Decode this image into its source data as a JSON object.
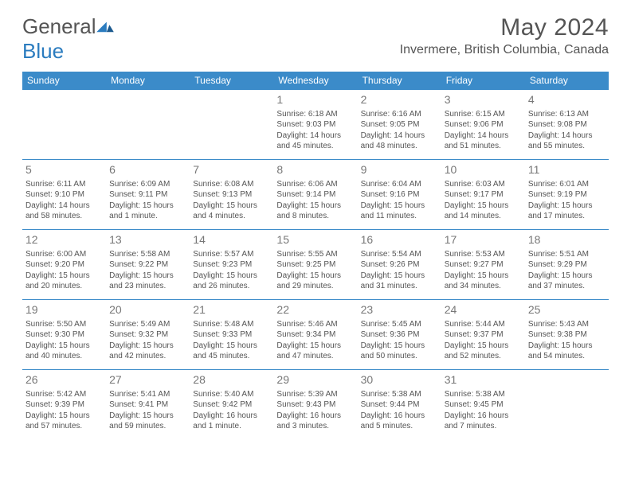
{
  "brand": {
    "part1": "General",
    "part2": "Blue"
  },
  "header": {
    "title": "May 2024",
    "location": "Invermere, British Columbia, Canada"
  },
  "colors": {
    "header_bg": "#3b8bc9",
    "header_text": "#ffffff",
    "border": "#3b8bc9",
    "text": "#555555",
    "brand_blue": "#2b7cbf"
  },
  "dayNames": [
    "Sunday",
    "Monday",
    "Tuesday",
    "Wednesday",
    "Thursday",
    "Friday",
    "Saturday"
  ],
  "weeks": [
    [
      null,
      null,
      null,
      {
        "n": "1",
        "sr": "Sunrise: 6:18 AM",
        "ss": "Sunset: 9:03 PM",
        "d1": "Daylight: 14 hours",
        "d2": "and 45 minutes."
      },
      {
        "n": "2",
        "sr": "Sunrise: 6:16 AM",
        "ss": "Sunset: 9:05 PM",
        "d1": "Daylight: 14 hours",
        "d2": "and 48 minutes."
      },
      {
        "n": "3",
        "sr": "Sunrise: 6:15 AM",
        "ss": "Sunset: 9:06 PM",
        "d1": "Daylight: 14 hours",
        "d2": "and 51 minutes."
      },
      {
        "n": "4",
        "sr": "Sunrise: 6:13 AM",
        "ss": "Sunset: 9:08 PM",
        "d1": "Daylight: 14 hours",
        "d2": "and 55 minutes."
      }
    ],
    [
      {
        "n": "5",
        "sr": "Sunrise: 6:11 AM",
        "ss": "Sunset: 9:10 PM",
        "d1": "Daylight: 14 hours",
        "d2": "and 58 minutes."
      },
      {
        "n": "6",
        "sr": "Sunrise: 6:09 AM",
        "ss": "Sunset: 9:11 PM",
        "d1": "Daylight: 15 hours",
        "d2": "and 1 minute."
      },
      {
        "n": "7",
        "sr": "Sunrise: 6:08 AM",
        "ss": "Sunset: 9:13 PM",
        "d1": "Daylight: 15 hours",
        "d2": "and 4 minutes."
      },
      {
        "n": "8",
        "sr": "Sunrise: 6:06 AM",
        "ss": "Sunset: 9:14 PM",
        "d1": "Daylight: 15 hours",
        "d2": "and 8 minutes."
      },
      {
        "n": "9",
        "sr": "Sunrise: 6:04 AM",
        "ss": "Sunset: 9:16 PM",
        "d1": "Daylight: 15 hours",
        "d2": "and 11 minutes."
      },
      {
        "n": "10",
        "sr": "Sunrise: 6:03 AM",
        "ss": "Sunset: 9:17 PM",
        "d1": "Daylight: 15 hours",
        "d2": "and 14 minutes."
      },
      {
        "n": "11",
        "sr": "Sunrise: 6:01 AM",
        "ss": "Sunset: 9:19 PM",
        "d1": "Daylight: 15 hours",
        "d2": "and 17 minutes."
      }
    ],
    [
      {
        "n": "12",
        "sr": "Sunrise: 6:00 AM",
        "ss": "Sunset: 9:20 PM",
        "d1": "Daylight: 15 hours",
        "d2": "and 20 minutes."
      },
      {
        "n": "13",
        "sr": "Sunrise: 5:58 AM",
        "ss": "Sunset: 9:22 PM",
        "d1": "Daylight: 15 hours",
        "d2": "and 23 minutes."
      },
      {
        "n": "14",
        "sr": "Sunrise: 5:57 AM",
        "ss": "Sunset: 9:23 PM",
        "d1": "Daylight: 15 hours",
        "d2": "and 26 minutes."
      },
      {
        "n": "15",
        "sr": "Sunrise: 5:55 AM",
        "ss": "Sunset: 9:25 PM",
        "d1": "Daylight: 15 hours",
        "d2": "and 29 minutes."
      },
      {
        "n": "16",
        "sr": "Sunrise: 5:54 AM",
        "ss": "Sunset: 9:26 PM",
        "d1": "Daylight: 15 hours",
        "d2": "and 31 minutes."
      },
      {
        "n": "17",
        "sr": "Sunrise: 5:53 AM",
        "ss": "Sunset: 9:27 PM",
        "d1": "Daylight: 15 hours",
        "d2": "and 34 minutes."
      },
      {
        "n": "18",
        "sr": "Sunrise: 5:51 AM",
        "ss": "Sunset: 9:29 PM",
        "d1": "Daylight: 15 hours",
        "d2": "and 37 minutes."
      }
    ],
    [
      {
        "n": "19",
        "sr": "Sunrise: 5:50 AM",
        "ss": "Sunset: 9:30 PM",
        "d1": "Daylight: 15 hours",
        "d2": "and 40 minutes."
      },
      {
        "n": "20",
        "sr": "Sunrise: 5:49 AM",
        "ss": "Sunset: 9:32 PM",
        "d1": "Daylight: 15 hours",
        "d2": "and 42 minutes."
      },
      {
        "n": "21",
        "sr": "Sunrise: 5:48 AM",
        "ss": "Sunset: 9:33 PM",
        "d1": "Daylight: 15 hours",
        "d2": "and 45 minutes."
      },
      {
        "n": "22",
        "sr": "Sunrise: 5:46 AM",
        "ss": "Sunset: 9:34 PM",
        "d1": "Daylight: 15 hours",
        "d2": "and 47 minutes."
      },
      {
        "n": "23",
        "sr": "Sunrise: 5:45 AM",
        "ss": "Sunset: 9:36 PM",
        "d1": "Daylight: 15 hours",
        "d2": "and 50 minutes."
      },
      {
        "n": "24",
        "sr": "Sunrise: 5:44 AM",
        "ss": "Sunset: 9:37 PM",
        "d1": "Daylight: 15 hours",
        "d2": "and 52 minutes."
      },
      {
        "n": "25",
        "sr": "Sunrise: 5:43 AM",
        "ss": "Sunset: 9:38 PM",
        "d1": "Daylight: 15 hours",
        "d2": "and 54 minutes."
      }
    ],
    [
      {
        "n": "26",
        "sr": "Sunrise: 5:42 AM",
        "ss": "Sunset: 9:39 PM",
        "d1": "Daylight: 15 hours",
        "d2": "and 57 minutes."
      },
      {
        "n": "27",
        "sr": "Sunrise: 5:41 AM",
        "ss": "Sunset: 9:41 PM",
        "d1": "Daylight: 15 hours",
        "d2": "and 59 minutes."
      },
      {
        "n": "28",
        "sr": "Sunrise: 5:40 AM",
        "ss": "Sunset: 9:42 PM",
        "d1": "Daylight: 16 hours",
        "d2": "and 1 minute."
      },
      {
        "n": "29",
        "sr": "Sunrise: 5:39 AM",
        "ss": "Sunset: 9:43 PM",
        "d1": "Daylight: 16 hours",
        "d2": "and 3 minutes."
      },
      {
        "n": "30",
        "sr": "Sunrise: 5:38 AM",
        "ss": "Sunset: 9:44 PM",
        "d1": "Daylight: 16 hours",
        "d2": "and 5 minutes."
      },
      {
        "n": "31",
        "sr": "Sunrise: 5:38 AM",
        "ss": "Sunset: 9:45 PM",
        "d1": "Daylight: 16 hours",
        "d2": "and 7 minutes."
      },
      null
    ]
  ]
}
